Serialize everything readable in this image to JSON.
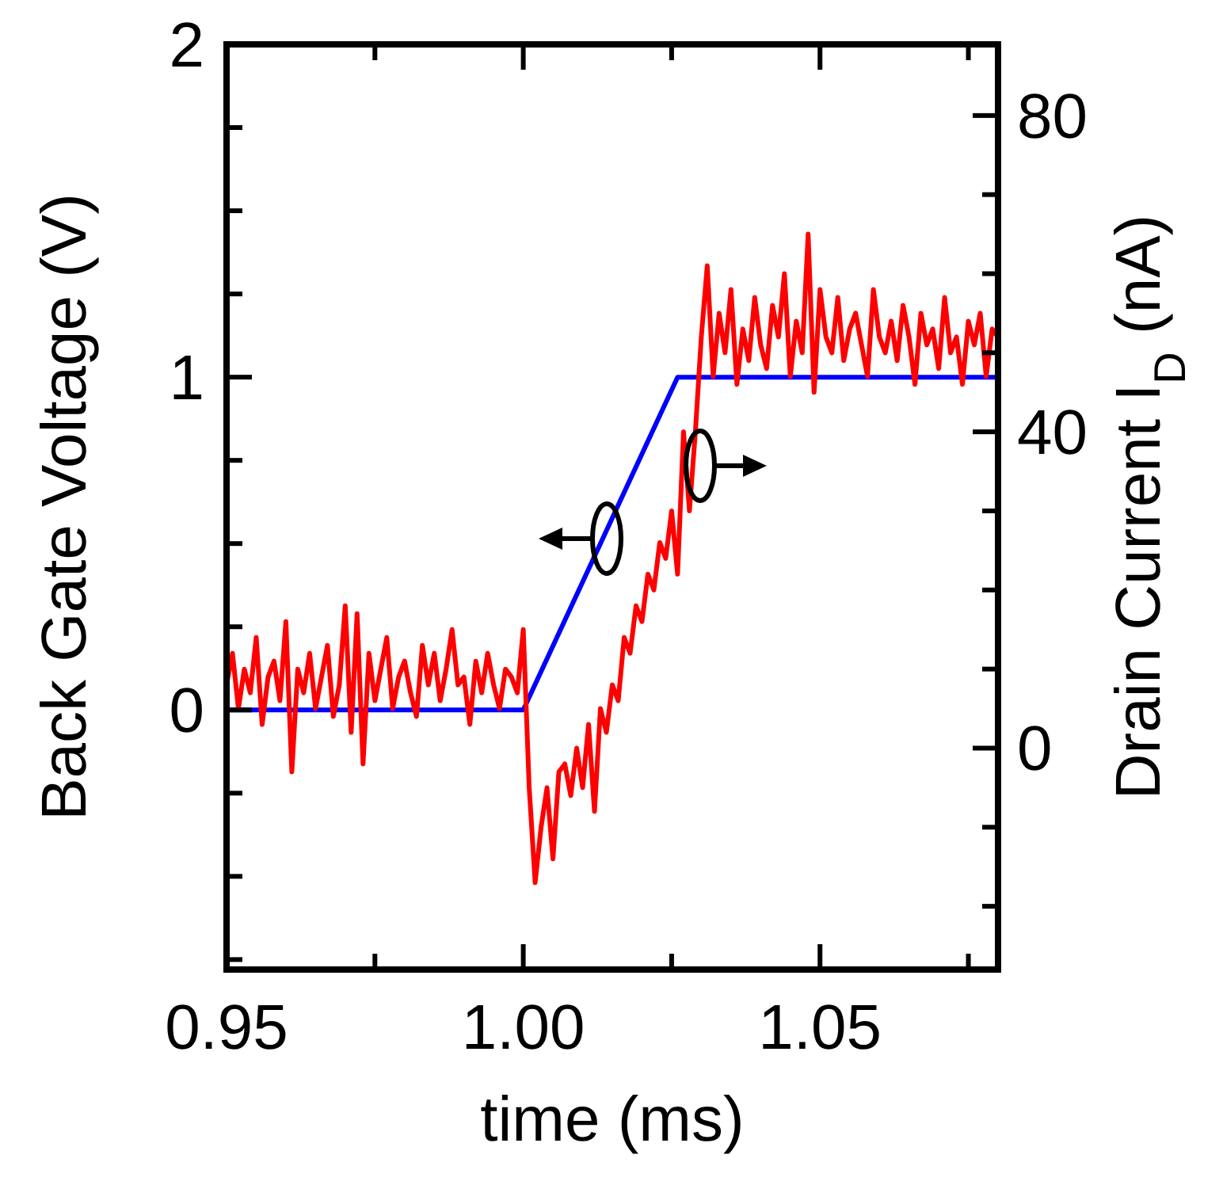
{
  "chart_data": {
    "type": "line",
    "xlabel": "time (ms)",
    "ylabel": "Back Gate Voltage (V)",
    "y2label": "Drain Current I$_{D}$ (nA)",
    "xlim": [
      0.95,
      1.08
    ],
    "xticks": [
      0.95,
      {
        "value": 0.975,
        "label": null
      },
      "1.00",
      {
        "value": 1.025,
        "label": null
      },
      1.05,
      {
        "value": 1.075,
        "label": null
      }
    ],
    "ylim": [
      -0.78,
      2
    ],
    "yticks": [
      {
        "value": -0.75,
        "label": null
      },
      {
        "value": -0.5,
        "label": null
      },
      {
        "value": -0.25,
        "label": null
      },
      0,
      {
        "value": 0.25,
        "label": null
      },
      {
        "value": 0.5,
        "label": null
      },
      {
        "value": 0.75,
        "label": null
      },
      1,
      {
        "value": 1.25,
        "label": null
      },
      {
        "value": 1.5,
        "label": null
      },
      {
        "value": 1.75,
        "label": null
      },
      2
    ],
    "y2lim": [
      -28,
      89
    ],
    "y2ticks": [
      {
        "value": -20,
        "label": null
      },
      {
        "value": -10,
        "label": null
      },
      0,
      {
        "value": 10,
        "label": null
      },
      {
        "value": 20,
        "label": null
      },
      {
        "value": 30,
        "label": null
      },
      40,
      {
        "value": 50,
        "label": null
      },
      {
        "value": 60,
        "label": null
      },
      {
        "value": 70,
        "label": null
      },
      80
    ],
    "grid": false,
    "marker": "none",
    "line_style": "solid",
    "series": [
      {
        "color": "#0000ff",
        "x": [
          0.95,
          1.0,
          1.026,
          1.08
        ],
        "values": [
          0,
          0,
          1,
          1
        ]
      },
      {
        "color": "#ff0000",
        "axis": "y2",
        "x": [
          0.95,
          0.951,
          0.952,
          0.953,
          0.954,
          0.955,
          0.956,
          0.957,
          0.958,
          0.959,
          0.96,
          0.961,
          0.962,
          0.963,
          0.964,
          0.965,
          0.966,
          0.967,
          0.968,
          0.969,
          0.97,
          0.971,
          0.972,
          0.973,
          0.974,
          0.975,
          0.976,
          0.977,
          0.978,
          0.979,
          0.98,
          0.981,
          0.982,
          0.983,
          0.984,
          0.985,
          0.986,
          0.987,
          0.988,
          0.989,
          0.99,
          0.991,
          0.992,
          0.993,
          0.994,
          0.995,
          0.996,
          0.997,
          0.998,
          0.999,
          1.0,
          1.001,
          1.002,
          1.003,
          1.004,
          1.005,
          1.006,
          1.007,
          1.008,
          1.009,
          1.01,
          1.011,
          1.012,
          1.013,
          1.014,
          1.015,
          1.016,
          1.017,
          1.018,
          1.019,
          1.02,
          1.021,
          1.022,
          1.023,
          1.024,
          1.025,
          1.026,
          1.027,
          1.028,
          1.029,
          1.03,
          1.031,
          1.032,
          1.033,
          1.034,
          1.035,
          1.036,
          1.037,
          1.038,
          1.039,
          1.04,
          1.041,
          1.042,
          1.043,
          1.044,
          1.045,
          1.046,
          1.047,
          1.048,
          1.049,
          1.05,
          1.051,
          1.052,
          1.053,
          1.054,
          1.055,
          1.056,
          1.057,
          1.058,
          1.059,
          1.06,
          1.061,
          1.062,
          1.063,
          1.064,
          1.065,
          1.066,
          1.067,
          1.068,
          1.069,
          1.07,
          1.071,
          1.072,
          1.073,
          1.074,
          1.075,
          1.076,
          1.077,
          1.078,
          1.079,
          1.08
        ],
        "values": [
          8,
          12,
          5,
          10,
          7,
          14,
          3,
          9,
          11,
          6,
          16,
          -3,
          10,
          7,
          12,
          5,
          9,
          13,
          4,
          8,
          18,
          2,
          17,
          -2,
          12,
          6,
          10,
          14,
          5,
          9,
          11,
          7,
          4,
          13,
          8,
          12,
          6,
          10,
          15,
          8,
          9,
          3,
          11,
          7,
          12,
          8,
          5,
          10,
          9,
          7,
          15,
          -5,
          -17,
          -10,
          -5,
          -14,
          -3,
          -2,
          -6,
          0,
          -5,
          3,
          -8,
          5,
          2,
          8,
          6,
          14,
          12,
          18,
          16,
          22,
          20,
          26,
          24,
          30,
          22,
          40,
          30,
          40,
          52,
          61,
          47,
          55,
          50,
          58,
          46,
          53,
          49,
          57,
          51,
          48,
          56,
          52,
          60,
          47,
          54,
          50,
          65,
          45,
          58,
          52,
          50,
          57,
          49,
          53,
          55,
          51,
          47,
          58,
          52,
          50,
          54,
          49,
          56,
          52,
          46,
          55,
          51,
          53,
          48,
          57,
          50,
          52,
          46,
          54,
          51,
          55,
          47,
          53,
          52
        ]
      }
    ]
  }
}
